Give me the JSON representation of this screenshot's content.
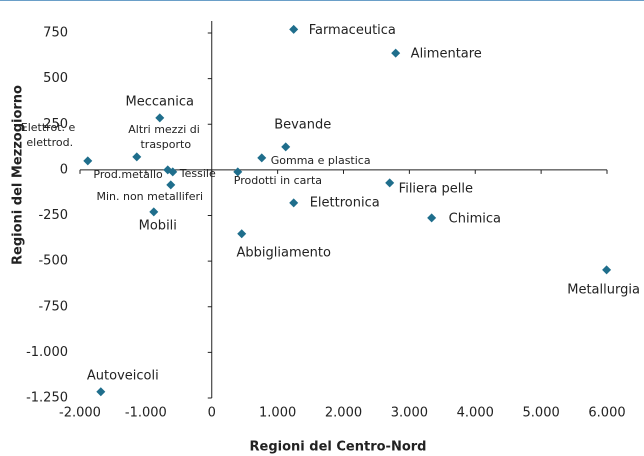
{
  "chart_data": {
    "type": "scatter",
    "x_label": "Regioni del Centro-Nord",
    "y_label": "Regioni del Mezzogiorno",
    "color": "#1f6e8c",
    "xlim": [
      -2000,
      6000
    ],
    "ylim": [
      -1250,
      750
    ],
    "xticks": [
      {
        "value": -2000,
        "label": "-2.000"
      },
      {
        "value": -1000,
        "label": "-1.000"
      },
      0,
      {
        "value": 1000,
        "label": "1.000"
      },
      {
        "value": 2000,
        "label": "2.000"
      },
      {
        "value": 3000,
        "label": "3.000"
      },
      {
        "value": 4000,
        "label": "4.000"
      },
      {
        "value": 5000,
        "label": "5.000"
      },
      {
        "value": 6000,
        "label": "6.000"
      }
    ],
    "yticks": [
      750,
      500,
      250,
      0,
      -250,
      -500,
      -750,
      {
        "value": -1000,
        "label": "-1.000"
      },
      {
        "value": -1250,
        "label": "-1.250"
      }
    ],
    "labels": [
      "Farmaceutica",
      "Alimentare",
      "Meccanica",
      "Bevande",
      "Elettrot. e elettrod.",
      "Altri mezzi di trasporto",
      "Gomma e plastica",
      "Prod.metallo",
      "Tessile",
      "Prodotti in carta",
      "Min. non metalliferi",
      "Filiera pelle",
      "Elettronica",
      "Mobili",
      "Chimica",
      "Abbigliamento",
      "Metallurgia",
      "Autoveicoli"
    ],
    "x": [
      1244,
      2792,
      -789,
      1123,
      -1882,
      -1138,
      759,
      -668,
      -592,
      395,
      -622,
      2701,
      1244,
      -880,
      3338,
      455,
      5994,
      -1684
    ],
    "values": [
      770,
      640,
      285,
      126,
      49,
      71,
      66,
      0,
      -11,
      -11,
      -82,
      -71,
      -181,
      -230,
      -263,
      -350,
      -548,
      -1216
    ]
  }
}
